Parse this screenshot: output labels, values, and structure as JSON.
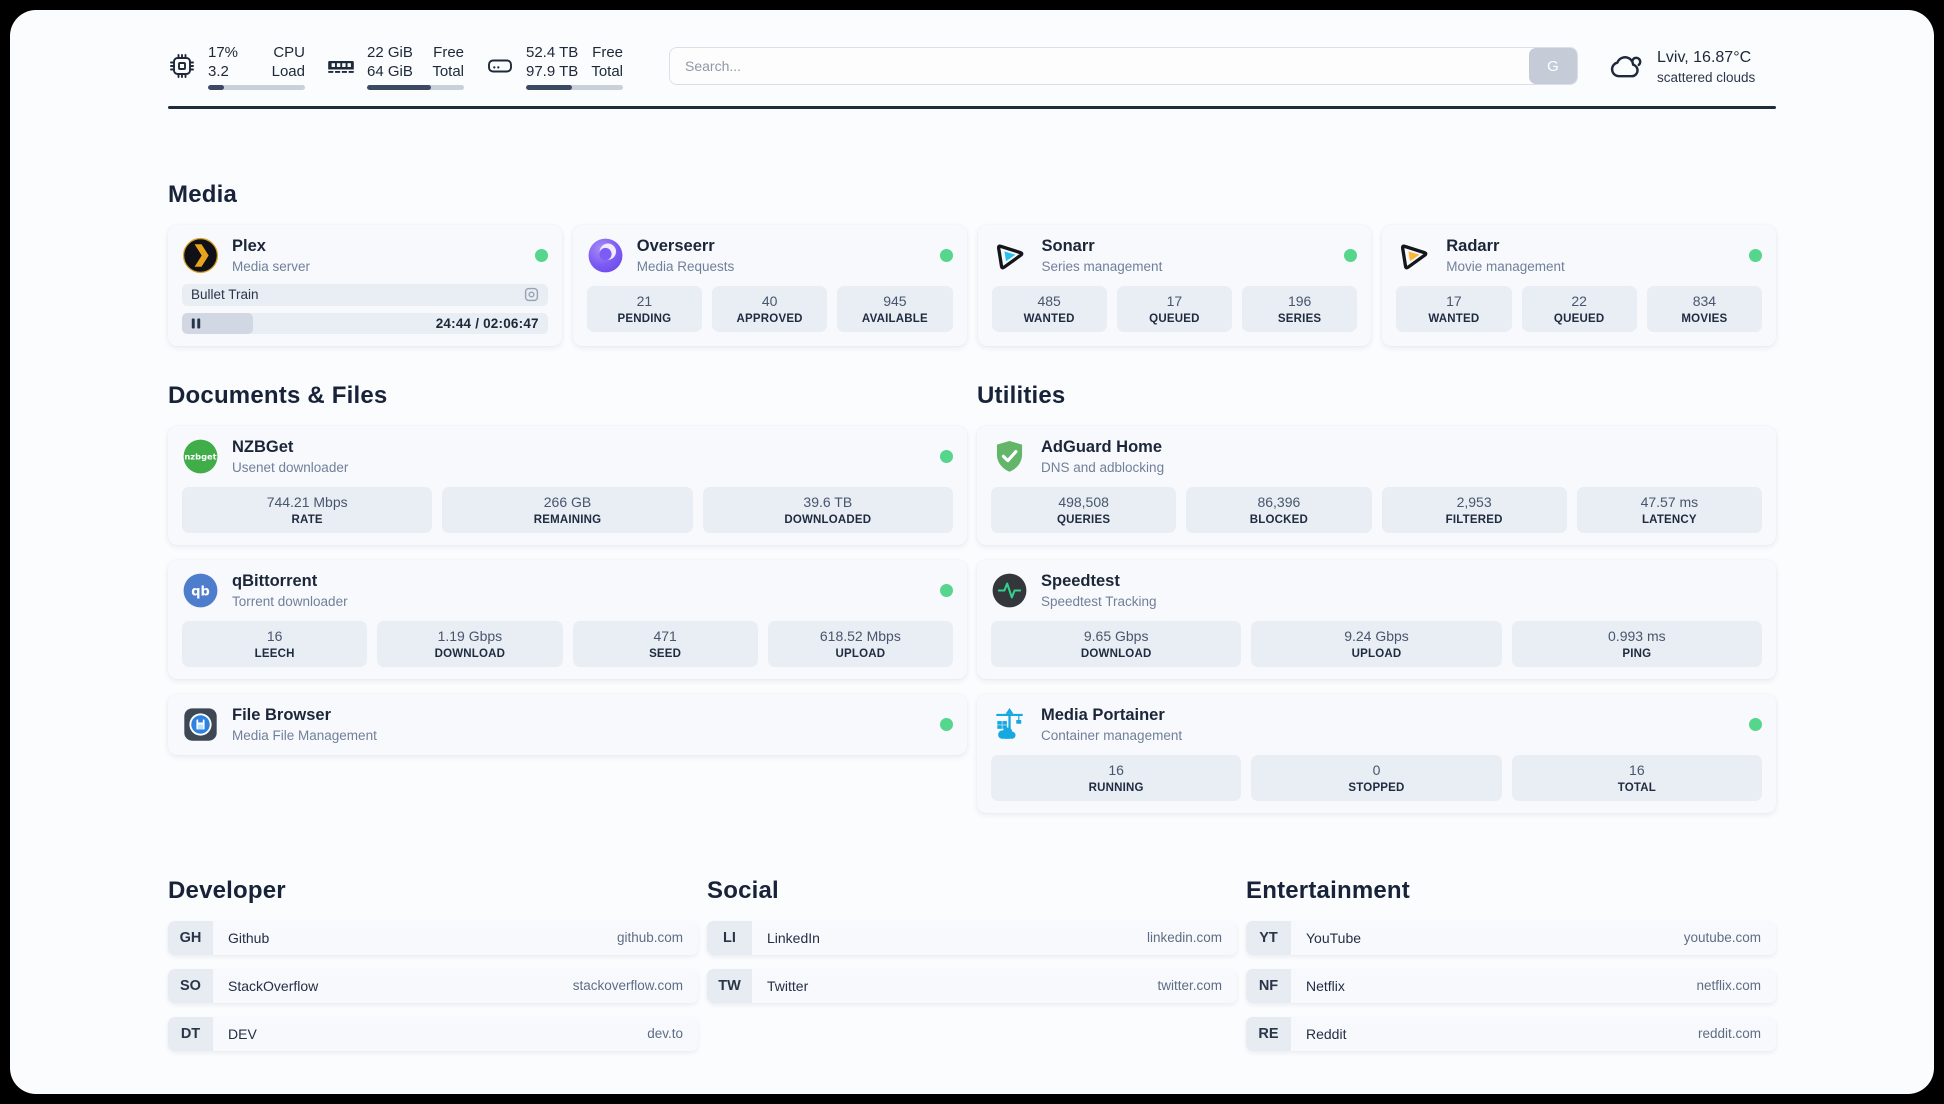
{
  "topbar": {
    "resources": [
      {
        "icon": "cpu-icon",
        "values": [
          "17%",
          "3.2"
        ],
        "labels": [
          "CPU",
          "Load"
        ],
        "progress_pct": 17
      },
      {
        "icon": "memory-icon",
        "values": [
          "22 GiB",
          "64 GiB"
        ],
        "labels": [
          "Free",
          "Total"
        ],
        "progress_pct": 66
      },
      {
        "icon": "disk-icon",
        "values": [
          "52.4 TB",
          "97.9 TB"
        ],
        "labels": [
          "Free",
          "Total"
        ],
        "progress_pct": 47
      }
    ],
    "search": {
      "placeholder": "Search...",
      "button_label": "G"
    },
    "weather": {
      "icon": "cloud-icon",
      "location": "Lviv, 16.87°C",
      "condition": "scattered clouds"
    }
  },
  "sections": {
    "media": {
      "heading": "Media",
      "plex": {
        "icon": "plex-icon",
        "title": "Plex",
        "subtitle": "Media server",
        "status": "online",
        "now_playing": "Bullet Train",
        "time": "24:44 / 02:06:47",
        "progress_pct": 19.5
      },
      "overseerr": {
        "icon": "overseerr-icon",
        "title": "Overseerr",
        "subtitle": "Media Requests",
        "status": "online",
        "stats": [
          {
            "value": "21",
            "label": "PENDING"
          },
          {
            "value": "40",
            "label": "APPROVED"
          },
          {
            "value": "945",
            "label": "AVAILABLE"
          }
        ]
      },
      "sonarr": {
        "icon": "sonarr-icon",
        "title": "Sonarr",
        "subtitle": "Series management",
        "status": "online",
        "stats": [
          {
            "value": "485",
            "label": "WANTED"
          },
          {
            "value": "17",
            "label": "QUEUED"
          },
          {
            "value": "196",
            "label": "SERIES"
          }
        ]
      },
      "radarr": {
        "icon": "radarr-icon",
        "title": "Radarr",
        "subtitle": "Movie management",
        "status": "online",
        "stats": [
          {
            "value": "17",
            "label": "WANTED"
          },
          {
            "value": "22",
            "label": "QUEUED"
          },
          {
            "value": "834",
            "label": "MOVIES"
          }
        ]
      }
    },
    "documents": {
      "heading": "Documents & Files",
      "nzbget": {
        "icon": "nzbget-icon",
        "title": "NZBGet",
        "subtitle": "Usenet downloader",
        "status": "online",
        "stats": [
          {
            "value": "744.21 Mbps",
            "label": "RATE"
          },
          {
            "value": "266 GB",
            "label": "REMAINING"
          },
          {
            "value": "39.6 TB",
            "label": "DOWNLOADED"
          }
        ]
      },
      "qbittorrent": {
        "icon": "qbittorrent-icon",
        "title": "qBittorrent",
        "subtitle": "Torrent downloader",
        "status": "online",
        "stats": [
          {
            "value": "16",
            "label": "LEECH"
          },
          {
            "value": "1.19 Gbps",
            "label": "DOWNLOAD"
          },
          {
            "value": "471",
            "label": "SEED"
          },
          {
            "value": "618.52 Mbps",
            "label": "UPLOAD"
          }
        ]
      },
      "filebrowser": {
        "icon": "filebrowser-icon",
        "title": "File Browser",
        "subtitle": "Media File Management",
        "status": "online"
      }
    },
    "utilities": {
      "heading": "Utilities",
      "adguard": {
        "icon": "adguard-icon",
        "title": "AdGuard Home",
        "subtitle": "DNS and adblocking",
        "stats": [
          {
            "value": "498,508",
            "label": "QUERIES"
          },
          {
            "value": "86,396",
            "label": "BLOCKED"
          },
          {
            "value": "2,953",
            "label": "FILTERED"
          },
          {
            "value": "47.57 ms",
            "label": "LATENCY"
          }
        ]
      },
      "speedtest": {
        "icon": "speedtest-icon",
        "title": "Speedtest",
        "subtitle": "Speedtest Tracking",
        "stats": [
          {
            "value": "9.65 Gbps",
            "label": "DOWNLOAD"
          },
          {
            "value": "9.24 Gbps",
            "label": "UPLOAD"
          },
          {
            "value": "0.993 ms",
            "label": "PING"
          }
        ]
      },
      "portainer": {
        "icon": "portainer-icon",
        "title": "Media Portainer",
        "subtitle": "Container management",
        "status": "online",
        "stats": [
          {
            "value": "16",
            "label": "RUNNING"
          },
          {
            "value": "0",
            "label": "STOPPED"
          },
          {
            "value": "16",
            "label": "TOTAL"
          }
        ]
      }
    },
    "developer": {
      "heading": "Developer",
      "links": [
        {
          "abbr": "GH",
          "name": "Github",
          "url": "github.com"
        },
        {
          "abbr": "SO",
          "name": "StackOverflow",
          "url": "stackoverflow.com"
        },
        {
          "abbr": "DT",
          "name": "DEV",
          "url": "dev.to"
        }
      ]
    },
    "social": {
      "heading": "Social",
      "links": [
        {
          "abbr": "LI",
          "name": "LinkedIn",
          "url": "linkedin.com"
        },
        {
          "abbr": "TW",
          "name": "Twitter",
          "url": "twitter.com"
        }
      ]
    },
    "entertainment": {
      "heading": "Entertainment",
      "links": [
        {
          "abbr": "YT",
          "name": "YouTube",
          "url": "youtube.com"
        },
        {
          "abbr": "NF",
          "name": "Netflix",
          "url": "netflix.com"
        },
        {
          "abbr": "RE",
          "name": "Reddit",
          "url": "reddit.com"
        }
      ]
    }
  },
  "colors": {
    "status_online": "#55d68c",
    "accent_dark": "#1e2939",
    "progress_fill": "#3c4962"
  }
}
